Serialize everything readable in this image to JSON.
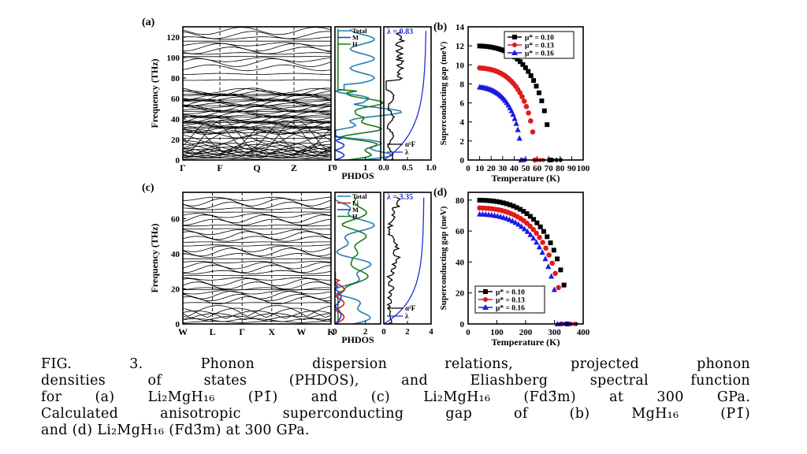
{
  "figure": {
    "panels": {
      "a": {
        "label": "(a)",
        "ylabel": "Frequency (THz)",
        "yticks": [
          "0",
          "20",
          "40",
          "60",
          "80",
          "100",
          "120"
        ],
        "ylim": [
          0,
          130
        ],
        "kpoints": [
          "Γ",
          "F",
          "Q",
          "Z",
          "Γ"
        ],
        "phdos": {
          "xlabel": "PHDOS",
          "xticks": [
            "0",
            "1"
          ],
          "legend": [
            "Total",
            "MgH",
            "H"
          ],
          "legend_display": [
            "Total",
            "M",
            "H"
          ],
          "colors": {
            "Total": "#2a7fb0",
            "Mg": "#1f3bcc",
            "H": "#1e7d1e"
          }
        },
        "eliashberg": {
          "lambda_label": "λ = 0.83",
          "xticks": [
            "0.0",
            "0.5",
            "1.0"
          ],
          "legend": [
            "α²F",
            "λ"
          ],
          "legend_display": [
            "α²F",
            "λ"
          ]
        }
      },
      "b": {
        "label": "(b)",
        "ylabel": "Superconducting gap (meV)",
        "xlabel": "Temperature (K)",
        "xticks": [
          "0",
          "10",
          "20",
          "30",
          "40",
          "50",
          "60",
          "70",
          "80",
          "90",
          "100"
        ],
        "yticks": [
          "0",
          "2",
          "4",
          "6",
          "8",
          "10",
          "12",
          "14"
        ],
        "legend": [
          "μ* = 0.10",
          "μ* = 0.13",
          "μ* = 0.16"
        ]
      },
      "c": {
        "label": "(c)",
        "ylabel": "Frequency (THz)",
        "yticks": [
          "0",
          "20",
          "40",
          "60"
        ],
        "ylim": [
          0,
          75
        ],
        "kpoints": [
          "W",
          "L",
          "Γ",
          "X",
          "W",
          "K"
        ],
        "phdos": {
          "xlabel": "PHDOS",
          "xticks": [
            "0",
            "2"
          ],
          "legend": [
            "Total",
            "Li",
            "MgH",
            "H"
          ],
          "legend_display": [
            "Total",
            "Li",
            "M",
            "H"
          ],
          "colors": {
            "Total": "#2a7fb0",
            "Li": "#cc2222",
            "Mg": "#1f3bcc",
            "H": "#1e7d1e"
          }
        },
        "eliashberg": {
          "lambda_label": "λ = 3.35",
          "xticks": [
            "0",
            "2",
            "4"
          ],
          "legend": [
            "α²F",
            "λ"
          ],
          "legend_display": [
            "α²F",
            "λ"
          ]
        }
      },
      "d": {
        "label": "(d)",
        "ylabel": "Superconducting gap (meV)",
        "xlabel": "Temperature (K)",
        "xticks": [
          "0",
          "100",
          "200",
          "300",
          "400"
        ],
        "yticks": [
          "0",
          "20",
          "40",
          "60",
          "80"
        ],
        "legend": [
          "μ* = 0.10",
          "μ* = 0.13",
          "μ* = 0.16"
        ]
      }
    },
    "series_colors": {
      "mu010": "#000000",
      "mu013": "#e21a1a",
      "mu016": "#1a1ae2"
    }
  },
  "chart_data": [
    {
      "panel": "b",
      "type": "scatter",
      "xlabel": "Temperature (K)",
      "ylabel": "Superconducting gap (meV)",
      "xlim": [
        0,
        100
      ],
      "ylim": [
        0,
        14
      ],
      "series": [
        {
          "name": "μ* = 0.10",
          "Tc": 71,
          "gap0": 12.0
        },
        {
          "name": "μ* = 0.13",
          "Tc": 58,
          "gap0": 9.7
        },
        {
          "name": "μ* = 0.16",
          "Tc": 46,
          "gap0": 7.7
        }
      ]
    },
    {
      "panel": "d",
      "type": "scatter",
      "xlabel": "Temperature (K)",
      "ylabel": "Superconducting gap (meV)",
      "xlim": [
        0,
        400
      ],
      "ylim": [
        0,
        85
      ],
      "series": [
        {
          "name": "μ* = 0.10",
          "Tc": 345,
          "gap0": 80
        },
        {
          "name": "μ* = 0.13",
          "Tc": 325,
          "gap0": 75
        },
        {
          "name": "μ* = 0.16",
          "Tc": 310,
          "gap0": 71
        }
      ]
    }
  ],
  "caption": {
    "lines": [
      "FIG.    3.    Phonon    dispersion    relations,    projected    phonon",
      "densities of states (PHDOS), and Eliashberg spectral function",
      "for (a) Li₂MgH₁₆ (P1̄) and (c) Li₂MgH₁₆ (Fd3̄m) at 300 GPa.",
      "Calculated anisotropic superconducting gap of (b) MgH₁₆ (P1̄)",
      "and (d) Li₂MgH₁₆ (Fd3̄m) at 300 GPa."
    ]
  }
}
